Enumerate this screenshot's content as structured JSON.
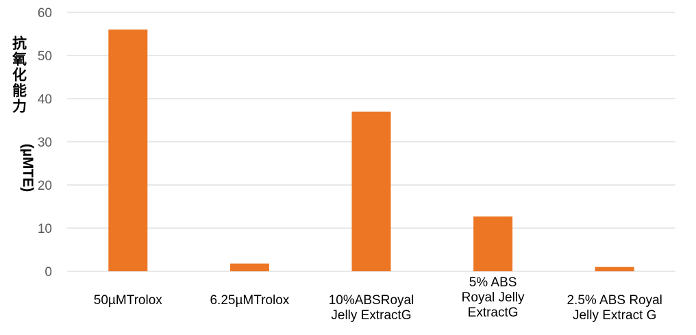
{
  "chart_data": {
    "type": "bar",
    "title": "",
    "xlabel": "",
    "ylabel": {
      "main": "抗氧化能力",
      "unit": "(µMTE)"
    },
    "categories": [
      [
        "50µMTrolox"
      ],
      [
        "6.25µMTrolox"
      ],
      [
        "10%ABSRoyal",
        "Jelly ExtractG"
      ],
      [
        "5% ABS",
        "Royal Jelly",
        "ExtractG"
      ],
      [
        "2.5% ABS Royal",
        "Jelly Extract G"
      ]
    ],
    "values": [
      56,
      1.8,
      37,
      12.7,
      1.0
    ],
    "ylim": [
      0,
      60
    ],
    "yticks": [
      0,
      10,
      20,
      30,
      40,
      50,
      60
    ],
    "grid": true,
    "legend": "none",
    "bar_color": "#ED7625",
    "grid_color": "#D9D9D9"
  }
}
